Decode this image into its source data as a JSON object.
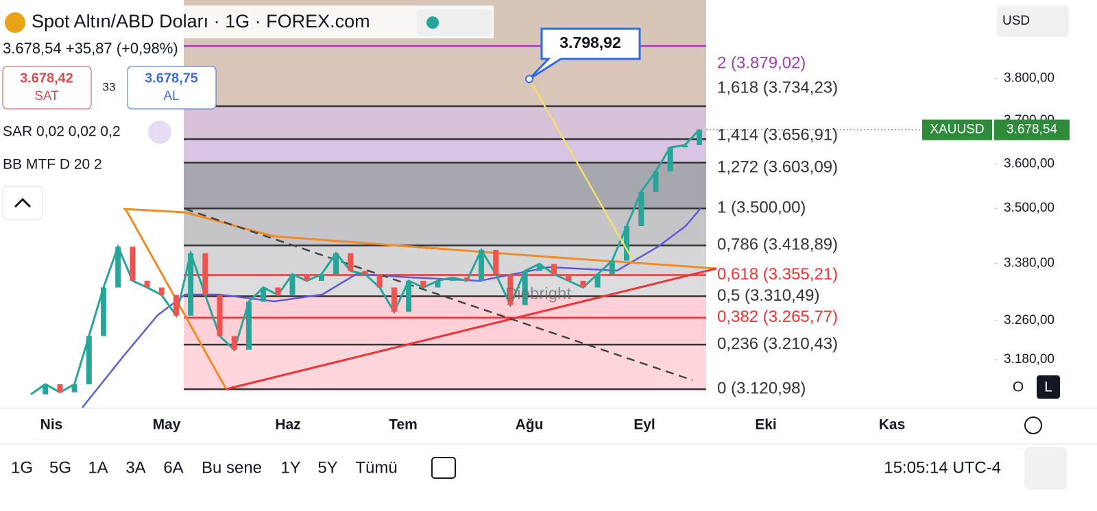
{
  "header": {
    "title": "Spot Altın/ABD Doları · 1G · FOREX.com",
    "quote": "3.678,54 +35,87 (+0,98%)",
    "sell_price": "3.678,42",
    "sell_label": "SAT",
    "spread": "33",
    "buy_price": "3.678,75",
    "buy_label": "AL",
    "indicator_sar": "SAR 0,02 0,02 0,2",
    "indicator_bb": "BB MTF D 20 2",
    "currency": "USD"
  },
  "chart_data": {
    "type": "line",
    "log_scale": true,
    "color": "#26a69a",
    "ylim": [
      3085,
      3994
    ],
    "yticks": [
      {
        "value": 3800,
        "label": "3.800,00"
      },
      {
        "value": 3700,
        "label": "3.700,00"
      },
      {
        "value": 3600,
        "label": "3.600,00"
      },
      {
        "value": 3500,
        "label": "3.500,00"
      },
      {
        "value": 3380,
        "label": "3.380,00"
      },
      {
        "value": 3260,
        "label": "3.260,00"
      },
      {
        "value": 3180,
        "label": "3.180,00"
      }
    ],
    "month_labels": [
      "Nis",
      "May",
      "Haz",
      "Tem",
      "Ağu",
      "Eyl",
      "Eki",
      "Kas"
    ],
    "categories": [
      null,
      null,
      null,
      null,
      null,
      null,
      null,
      null,
      null,
      null,
      null,
      null,
      null,
      null,
      null,
      null,
      null,
      null,
      null,
      null,
      null,
      null,
      null,
      null,
      null,
      null,
      null,
      null,
      null,
      null,
      null,
      null,
      null,
      null,
      null,
      null,
      null,
      null,
      null,
      null,
      null,
      null,
      null,
      null,
      null,
      null,
      null
    ],
    "values": [
      3111,
      3131,
      3115,
      3131,
      3228,
      3329,
      3416,
      3343,
      3329,
      3313,
      3270,
      3402,
      3313,
      3228,
      3200,
      3299,
      3329,
      3313,
      3357,
      3343,
      3357,
      3402,
      3364,
      3357,
      3329,
      3278,
      3343,
      3329,
      3343,
      3350,
      3343,
      3409,
      3357,
      3292,
      3364,
      3379,
      3357,
      3343,
      3329,
      3357,
      3386,
      3461,
      3537,
      3583,
      3638,
      3643,
      3679
    ],
    "fib_levels": [
      {
        "value": 3879.02,
        "label": "2 (3.879,02)"
      },
      {
        "value": 3734.23,
        "label": "1,618 (3.734,23)"
      },
      {
        "value": 3656.91,
        "label": "1,414 (3.656,91)"
      },
      {
        "value": 3603.09,
        "label": "1,272 (3.603,09)"
      },
      {
        "value": 3500.0,
        "label": "1 (3.500,00)"
      },
      {
        "value": 3418.89,
        "label": "0,786 (3.418,89)"
      },
      {
        "value": 3355.21,
        "label": "0,618 (3.355,21)"
      },
      {
        "value": 3310.49,
        "label": "0,5 (3.310,49)"
      },
      {
        "value": 3265.77,
        "label": "0,382 (3.265,77)"
      },
      {
        "value": 3210.43,
        "label": "0,236 (3.210,43)"
      },
      {
        "value": 3120.98,
        "label": "0 (3.120,98)"
      }
    ],
    "annotation": {
      "value": 3798.92,
      "label": "3.798,92"
    },
    "last_price": {
      "value": 3678.54,
      "label": "3.678,54"
    },
    "symbol": "XAUUSD",
    "watermark": "Diebright"
  },
  "toolbar": {
    "ranges": [
      "1G",
      "5G",
      "1A",
      "3A",
      "6A",
      "Bu sene",
      "1Y",
      "5Y",
      "Tümü"
    ],
    "time": "15:05:14 UTC-4",
    "scale_buttons": [
      "O",
      "L"
    ]
  }
}
